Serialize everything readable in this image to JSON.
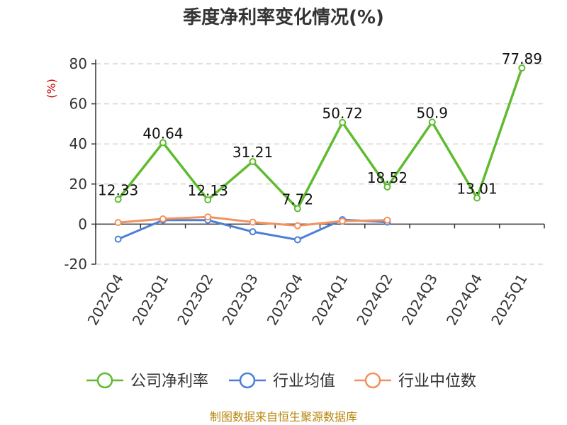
{
  "chart_data": {
    "type": "line",
    "title": "季度净利率变化情况(%)",
    "ylabel": "(%)",
    "categories": [
      "2022Q4",
      "2023Q1",
      "2023Q2",
      "2023Q3",
      "2023Q4",
      "2024Q1",
      "2024Q2",
      "2024Q3",
      "2024Q4",
      "2025Q1"
    ],
    "ylim": [
      -20,
      80
    ],
    "yticks": [
      -20,
      0,
      20,
      40,
      60,
      80
    ],
    "grid": true,
    "legend_position": "bottom",
    "series": [
      {
        "name": "公司净利率",
        "color": "#5fbb2f",
        "values": [
          12.33,
          40.64,
          12.13,
          31.21,
          7.72,
          50.72,
          18.52,
          50.9,
          13.01,
          77.89
        ],
        "labels": [
          "12.33",
          "40.64",
          "12.13",
          "31.21",
          "7.72",
          "50.72",
          "18.52",
          "50.9",
          "13.01",
          "77.89"
        ]
      },
      {
        "name": "行业均值",
        "color": "#4c7fd6",
        "values": [
          -7.5,
          2.0,
          2.0,
          -3.8,
          -7.8,
          2.2,
          1.0,
          null,
          null,
          null
        ]
      },
      {
        "name": "行业中位数",
        "color": "#f2925f",
        "values": [
          0.8,
          2.6,
          3.6,
          1.0,
          -0.8,
          1.5,
          2.0,
          null,
          null,
          null
        ]
      }
    ],
    "source": "制图数据来自恒生聚源数据库",
    "colors": {
      "axis": "#333333",
      "grid": "#cccccc",
      "unit_label": "#cc0000",
      "source_text": "#b8860b"
    }
  }
}
